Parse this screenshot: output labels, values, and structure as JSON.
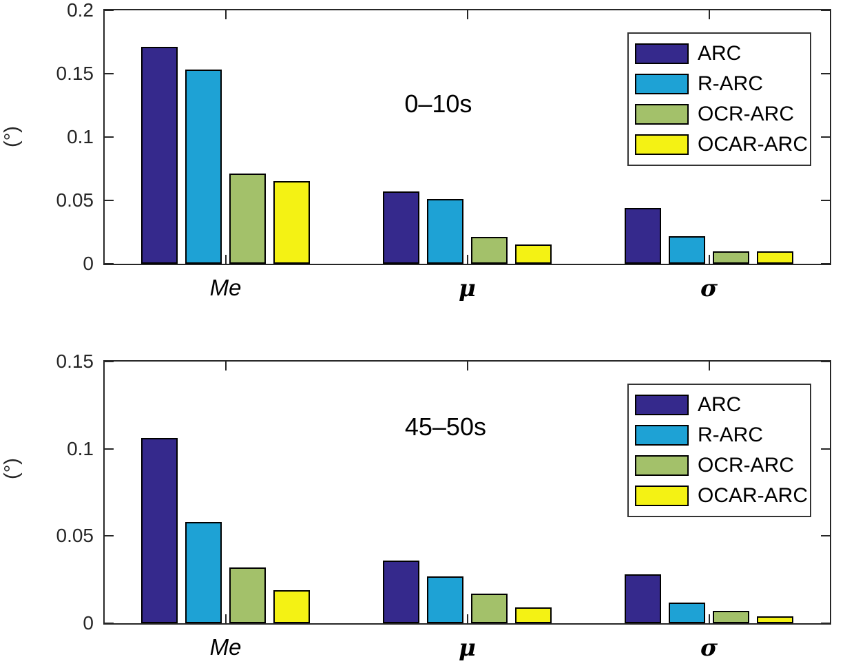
{
  "colors": {
    "axis": "#262626",
    "bar_outline": "#000000",
    "background": "#FFFFFF",
    "arc": "#35298C",
    "r_arc": "#1EA2D5",
    "ocr_arc": "#A3C16A",
    "ocar_arc": "#F4F214"
  },
  "chart_data": [
    {
      "type": "bar",
      "title": "0–10s",
      "ylabel": "(°)",
      "xlabel": "",
      "categories": [
        "Me",
        "μ",
        "σ"
      ],
      "series": [
        {
          "name": "ARC",
          "color": "#35298C",
          "values": [
            0.171,
            0.057,
            0.044
          ]
        },
        {
          "name": "R-ARC",
          "color": "#1EA2D5",
          "values": [
            0.153,
            0.051,
            0.022
          ]
        },
        {
          "name": "OCR-ARC",
          "color": "#A3C16A",
          "values": [
            0.071,
            0.021,
            0.01
          ]
        },
        {
          "name": "OCAR-ARC",
          "color": "#F4F214",
          "values": [
            0.065,
            0.015,
            0.01
          ]
        }
      ],
      "ylim": [
        0,
        0.2
      ],
      "yticks": [
        "0",
        "0.05",
        "0.1",
        "0.15",
        "0.2"
      ],
      "legend_position": "northeast",
      "grid": false
    },
    {
      "type": "bar",
      "title": "45–50s",
      "ylabel": "(°)",
      "xlabel": "",
      "categories": [
        "Me",
        "μ",
        "σ"
      ],
      "series": [
        {
          "name": "ARC",
          "color": "#35298C",
          "values": [
            0.106,
            0.036,
            0.028
          ]
        },
        {
          "name": "R-ARC",
          "color": "#1EA2D5",
          "values": [
            0.058,
            0.027,
            0.012
          ]
        },
        {
          "name": "OCR-ARC",
          "color": "#A3C16A",
          "values": [
            0.032,
            0.017,
            0.007
          ]
        },
        {
          "name": "OCAR-ARC",
          "color": "#F4F214",
          "values": [
            0.019,
            0.009,
            0.004
          ]
        }
      ],
      "ylim": [
        0,
        0.15
      ],
      "yticks": [
        "0",
        "0.05",
        "0.1",
        "0.15"
      ],
      "legend_position": "northeast",
      "grid": false
    }
  ]
}
